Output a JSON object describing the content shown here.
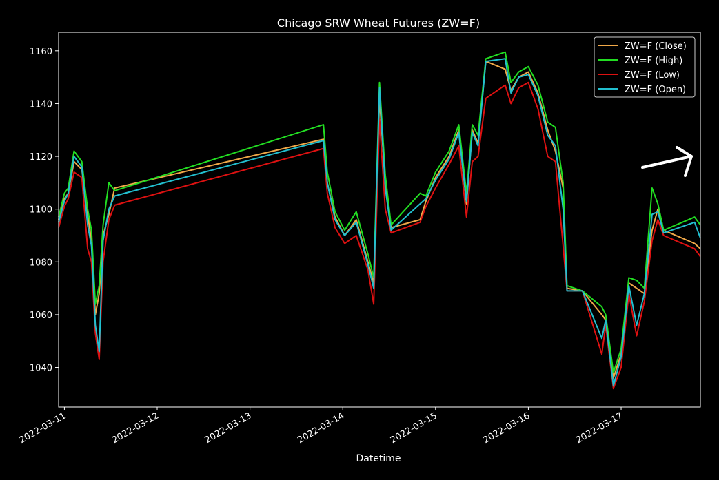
{
  "chart_data": {
    "type": "line",
    "title": "Chicago SRW Wheat Futures (ZW=F)",
    "xlabel": "Datetime",
    "ylabel": "",
    "x_ticks": [
      "2022-03-11",
      "2022-03-12",
      "2022-03-13",
      "2022-03-14",
      "2022-03-15",
      "2022-03-16",
      "2022-03-17"
    ],
    "y_ticks": [
      1040,
      1060,
      1080,
      1100,
      1120,
      1140,
      1160
    ],
    "xlim": [
      "2022-03-10 22:30",
      "2022-03-17 20:30"
    ],
    "ylim": [
      1025,
      1167
    ],
    "legend_position": "top-right",
    "grid": false,
    "series": [
      {
        "name": "ZW=F (Close)",
        "color": "#f0a848",
        "points": [
          [
            "2022-03-10 22:30",
            1096
          ],
          [
            "2022-03-11 00:00",
            1104
          ],
          [
            "2022-03-11 01:00",
            1106
          ],
          [
            "2022-03-11 02:30",
            1118
          ],
          [
            "2022-03-11 04:30",
            1115
          ],
          [
            "2022-03-11 06:00",
            1098
          ],
          [
            "2022-03-11 07:00",
            1088
          ],
          [
            "2022-03-11 08:00",
            1060
          ],
          [
            "2022-03-11 09:00",
            1068
          ],
          [
            "2022-03-11 10:00",
            1090
          ],
          [
            "2022-03-11 11:30",
            1098
          ],
          [
            "2022-03-11 13:00",
            1108
          ],
          [
            "2022-03-13 19:00",
            1126.5
          ],
          [
            "2022-03-13 20:00",
            1110
          ],
          [
            "2022-03-13 22:00",
            1097
          ],
          [
            "2022-03-14 00:30",
            1090
          ],
          [
            "2022-03-14 03:30",
            1096
          ],
          [
            "2022-03-14 06:30",
            1080
          ],
          [
            "2022-03-14 08:00",
            1072
          ],
          [
            "2022-03-14 09:30",
            1142
          ],
          [
            "2022-03-14 11:00",
            1110
          ],
          [
            "2022-03-14 12:30",
            1093
          ],
          [
            "2022-03-14 20:00",
            1096
          ],
          [
            "2022-03-14 21:30",
            1103
          ],
          [
            "2022-03-15 00:00",
            1112
          ],
          [
            "2022-03-15 03:30",
            1120
          ],
          [
            "2022-03-15 06:00",
            1130
          ],
          [
            "2022-03-15 08:00",
            1102
          ],
          [
            "2022-03-15 09:30",
            1130
          ],
          [
            "2022-03-15 11:00",
            1125
          ],
          [
            "2022-03-15 13:00",
            1156
          ],
          [
            "2022-03-15 18:00",
            1153
          ],
          [
            "2022-03-15 19:30",
            1145
          ],
          [
            "2022-03-15 21:30",
            1150
          ],
          [
            "2022-03-16 00:00",
            1152
          ],
          [
            "2022-03-16 02:30",
            1144
          ],
          [
            "2022-03-16 05:00",
            1130
          ],
          [
            "2022-03-16 07:00",
            1122
          ],
          [
            "2022-03-16 09:00",
            1108
          ],
          [
            "2022-03-16 10:00",
            1070
          ],
          [
            "2022-03-16 14:00",
            1069
          ],
          [
            "2022-03-16 19:00",
            1060
          ],
          [
            "2022-03-16 20:00",
            1058
          ],
          [
            "2022-03-16 22:00",
            1036
          ],
          [
            "2022-03-17 00:00",
            1045
          ],
          [
            "2022-03-17 02:00",
            1072
          ],
          [
            "2022-03-17 04:00",
            1070
          ],
          [
            "2022-03-17 06:00",
            1068
          ],
          [
            "2022-03-17 08:00",
            1092
          ],
          [
            "2022-03-17 09:30",
            1100
          ],
          [
            "2022-03-17 11:00",
            1092
          ],
          [
            "2022-03-17 19:00",
            1087
          ],
          [
            "2022-03-17 20:30",
            1085
          ]
        ]
      },
      {
        "name": "ZW=F (High)",
        "color": "#22dd22",
        "points": [
          [
            "2022-03-10 22:30",
            1097
          ],
          [
            "2022-03-11 00:00",
            1106
          ],
          [
            "2022-03-11 01:00",
            1108
          ],
          [
            "2022-03-11 02:30",
            1122
          ],
          [
            "2022-03-11 04:30",
            1118
          ],
          [
            "2022-03-11 06:00",
            1100
          ],
          [
            "2022-03-11 07:00",
            1092
          ],
          [
            "2022-03-11 08:00",
            1064
          ],
          [
            "2022-03-11 09:00",
            1071
          ],
          [
            "2022-03-11 10:00",
            1094
          ],
          [
            "2022-03-11 11:30",
            1110
          ],
          [
            "2022-03-11 13:00",
            1107
          ],
          [
            "2022-03-13 19:00",
            1132
          ],
          [
            "2022-03-13 20:00",
            1114
          ],
          [
            "2022-03-13 22:00",
            1099
          ],
          [
            "2022-03-14 00:30",
            1092
          ],
          [
            "2022-03-14 03:30",
            1099
          ],
          [
            "2022-03-14 06:30",
            1083
          ],
          [
            "2022-03-14 08:00",
            1074
          ],
          [
            "2022-03-14 09:30",
            1148
          ],
          [
            "2022-03-14 11:00",
            1113
          ],
          [
            "2022-03-14 12:30",
            1094
          ],
          [
            "2022-03-14 20:00",
            1106
          ],
          [
            "2022-03-14 21:30",
            1105
          ],
          [
            "2022-03-15 00:00",
            1114
          ],
          [
            "2022-03-15 03:30",
            1122
          ],
          [
            "2022-03-15 06:00",
            1132
          ],
          [
            "2022-03-15 08:00",
            1106
          ],
          [
            "2022-03-15 09:30",
            1132
          ],
          [
            "2022-03-15 11:00",
            1128
          ],
          [
            "2022-03-15 13:00",
            1157
          ],
          [
            "2022-03-15 18:00",
            1159.5
          ],
          [
            "2022-03-15 19:30",
            1148
          ],
          [
            "2022-03-15 21:30",
            1152
          ],
          [
            "2022-03-16 00:00",
            1154
          ],
          [
            "2022-03-16 02:30",
            1147
          ],
          [
            "2022-03-16 05:00",
            1133
          ],
          [
            "2022-03-16 07:00",
            1131
          ],
          [
            "2022-03-16 09:00",
            1110
          ],
          [
            "2022-03-16 10:00",
            1071
          ],
          [
            "2022-03-16 14:00",
            1069
          ],
          [
            "2022-03-16 19:00",
            1063
          ],
          [
            "2022-03-16 20:00",
            1060
          ],
          [
            "2022-03-16 22:00",
            1038
          ],
          [
            "2022-03-17 00:00",
            1047
          ],
          [
            "2022-03-17 02:00",
            1074
          ],
          [
            "2022-03-17 04:00",
            1073
          ],
          [
            "2022-03-17 06:00",
            1070
          ],
          [
            "2022-03-17 08:00",
            1108
          ],
          [
            "2022-03-17 09:30",
            1102
          ],
          [
            "2022-03-17 11:00",
            1092
          ],
          [
            "2022-03-17 19:00",
            1097
          ],
          [
            "2022-03-17 20:30",
            1094
          ]
        ]
      },
      {
        "name": "ZW=F (Low)",
        "color": "#dd1111",
        "points": [
          [
            "2022-03-10 22:30",
            1093
          ],
          [
            "2022-03-11 00:00",
            1101
          ],
          [
            "2022-03-11 01:00",
            1104
          ],
          [
            "2022-03-11 02:30",
            1114
          ],
          [
            "2022-03-11 04:30",
            1112
          ],
          [
            "2022-03-11 06:00",
            1085
          ],
          [
            "2022-03-11 07:00",
            1080
          ],
          [
            "2022-03-11 08:00",
            1053
          ],
          [
            "2022-03-11 09:00",
            1043
          ],
          [
            "2022-03-11 10:00",
            1080
          ],
          [
            "2022-03-11 11:30",
            1096
          ],
          [
            "2022-03-11 13:00",
            1101.5
          ],
          [
            "2022-03-13 19:00",
            1123
          ],
          [
            "2022-03-13 20:00",
            1106
          ],
          [
            "2022-03-13 22:00",
            1093
          ],
          [
            "2022-03-14 00:30",
            1087
          ],
          [
            "2022-03-14 03:30",
            1090
          ],
          [
            "2022-03-14 06:30",
            1077
          ],
          [
            "2022-03-14 08:00",
            1064
          ],
          [
            "2022-03-14 09:30",
            1134
          ],
          [
            "2022-03-14 11:00",
            1100
          ],
          [
            "2022-03-14 12:30",
            1091
          ],
          [
            "2022-03-14 20:00",
            1095
          ],
          [
            "2022-03-14 21:30",
            1101
          ],
          [
            "2022-03-15 00:00",
            1108
          ],
          [
            "2022-03-15 03:30",
            1117
          ],
          [
            "2022-03-15 06:00",
            1124
          ],
          [
            "2022-03-15 08:00",
            1097
          ],
          [
            "2022-03-15 09:30",
            1118
          ],
          [
            "2022-03-15 11:00",
            1120
          ],
          [
            "2022-03-15 13:00",
            1142
          ],
          [
            "2022-03-15 18:00",
            1147
          ],
          [
            "2022-03-15 19:30",
            1140
          ],
          [
            "2022-03-15 21:30",
            1146
          ],
          [
            "2022-03-16 00:00",
            1148
          ],
          [
            "2022-03-16 02:30",
            1138
          ],
          [
            "2022-03-16 05:00",
            1120
          ],
          [
            "2022-03-16 07:00",
            1118
          ],
          [
            "2022-03-16 09:00",
            1086
          ],
          [
            "2022-03-16 10:00",
            1069
          ],
          [
            "2022-03-16 14:00",
            1069
          ],
          [
            "2022-03-16 19:00",
            1045
          ],
          [
            "2022-03-16 20:00",
            1056
          ],
          [
            "2022-03-16 22:00",
            1032
          ],
          [
            "2022-03-17 00:00",
            1040
          ],
          [
            "2022-03-17 02:00",
            1068
          ],
          [
            "2022-03-17 04:00",
            1052
          ],
          [
            "2022-03-17 06:00",
            1065
          ],
          [
            "2022-03-17 08:00",
            1088
          ],
          [
            "2022-03-17 09:30",
            1096
          ],
          [
            "2022-03-17 11:00",
            1090
          ],
          [
            "2022-03-17 19:00",
            1085
          ],
          [
            "2022-03-17 20:30",
            1082
          ]
        ]
      },
      {
        "name": "ZW=F (Open)",
        "color": "#22bfcf",
        "points": [
          [
            "2022-03-10 22:30",
            1095
          ],
          [
            "2022-03-11 00:00",
            1103
          ],
          [
            "2022-03-11 01:00",
            1106
          ],
          [
            "2022-03-11 02:30",
            1120
          ],
          [
            "2022-03-11 04:30",
            1116
          ],
          [
            "2022-03-11 06:00",
            1094
          ],
          [
            "2022-03-11 07:00",
            1086
          ],
          [
            "2022-03-11 08:00",
            1056
          ],
          [
            "2022-03-11 09:00",
            1046
          ],
          [
            "2022-03-11 10:00",
            1088
          ],
          [
            "2022-03-11 11:30",
            1100
          ],
          [
            "2022-03-11 13:00",
            1105
          ],
          [
            "2022-03-13 19:00",
            1126
          ],
          [
            "2022-03-13 20:00",
            1110
          ],
          [
            "2022-03-13 22:00",
            1096
          ],
          [
            "2022-03-14 00:30",
            1090
          ],
          [
            "2022-03-14 03:30",
            1095
          ],
          [
            "2022-03-14 06:30",
            1079
          ],
          [
            "2022-03-14 08:00",
            1070
          ],
          [
            "2022-03-14 09:30",
            1146
          ],
          [
            "2022-03-14 11:00",
            1108
          ],
          [
            "2022-03-14 12:30",
            1092
          ],
          [
            "2022-03-14 20:00",
            1102
          ],
          [
            "2022-03-14 21:30",
            1104
          ],
          [
            "2022-03-15 00:00",
            1111
          ],
          [
            "2022-03-15 03:30",
            1119
          ],
          [
            "2022-03-15 06:00",
            1129
          ],
          [
            "2022-03-15 08:00",
            1103
          ],
          [
            "2022-03-15 09:30",
            1129
          ],
          [
            "2022-03-15 11:00",
            1124
          ],
          [
            "2022-03-15 13:00",
            1156
          ],
          [
            "2022-03-15 18:00",
            1157
          ],
          [
            "2022-03-15 19:30",
            1144
          ],
          [
            "2022-03-15 21:30",
            1150
          ],
          [
            "2022-03-16 00:00",
            1151
          ],
          [
            "2022-03-16 02:30",
            1143
          ],
          [
            "2022-03-16 05:00",
            1128
          ],
          [
            "2022-03-16 07:00",
            1124
          ],
          [
            "2022-03-16 09:00",
            1100
          ],
          [
            "2022-03-16 10:00",
            1069
          ],
          [
            "2022-03-16 14:00",
            1069
          ],
          [
            "2022-03-16 19:00",
            1051
          ],
          [
            "2022-03-16 20:00",
            1058
          ],
          [
            "2022-03-16 22:00",
            1033
          ],
          [
            "2022-03-17 00:00",
            1044
          ],
          [
            "2022-03-17 02:00",
            1071
          ],
          [
            "2022-03-17 04:00",
            1056
          ],
          [
            "2022-03-17 06:00",
            1068
          ],
          [
            "2022-03-17 08:00",
            1098
          ],
          [
            "2022-03-17 09:30",
            1099
          ],
          [
            "2022-03-17 11:00",
            1091
          ],
          [
            "2022-03-17 19:00",
            1095
          ],
          [
            "2022-03-17 20:30",
            1089
          ]
        ]
      }
    ]
  }
}
